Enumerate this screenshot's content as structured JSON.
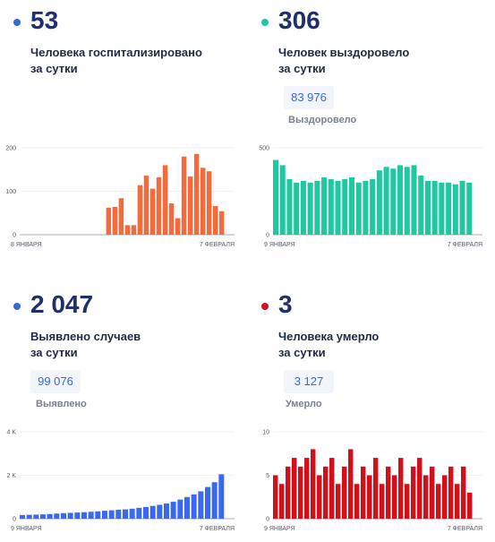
{
  "panels": [
    {
      "value": "53",
      "desc_line1": "Человека госпитализировано",
      "desc_line2": "за сутки",
      "dot_color": "#3a68d8",
      "total": "",
      "total_label": ""
    },
    {
      "value": "306",
      "desc_line1": "Человек выздоровело",
      "desc_line2": "за сутки",
      "dot_color": "#1fc8a0",
      "total": "83 976",
      "total_label": "Выздоровело"
    },
    {
      "value": "2 047",
      "desc_line1": "Выявлено случаев",
      "desc_line2": "за сутки",
      "dot_color": "#3a68d8",
      "total": "99 076",
      "total_label": "Выявлено"
    },
    {
      "value": "3",
      "desc_line1": "Человека умерло",
      "desc_line2": "за сутки",
      "dot_color": "#d0111b",
      "total": "3 127",
      "total_label": "Умерло"
    }
  ],
  "chart_data": [
    {
      "type": "bar",
      "name": "hospitalized",
      "color": "#f56a3a",
      "x_start_label": "8 ЯНВАРЯ",
      "x_end_label": "7 ФЕВРАЛЯ",
      "y_ticks": [
        "0",
        "100",
        "200"
      ],
      "ylim": [
        0,
        200
      ],
      "values": [
        null,
        null,
        null,
        null,
        null,
        null,
        null,
        null,
        null,
        null,
        null,
        null,
        null,
        null,
        null,
        null,
        null,
        null,
        null,
        null,
        null,
        null,
        null,
        null,
        null,
        null,
        null,
        null,
        null,
        null,
        null,
        null,
        null,
        null,
        null,
        null,
        null,
        null,
        null,
        null,
        null,
        null,
        null,
        null,
        null,
        null,
        null,
        null,
        null,
        null,
        null,
        null,
        null,
        null,
        null,
        null,
        null,
        null,
        null,
        null,
        null,
        null,
        null,
        null,
        null,
        null,
        null,
        null,
        null,
        null,
        null,
        null,
        null,
        null,
        null,
        null,
        null,
        null,
        null,
        null,
        null,
        null,
        null,
        null,
        null,
        null,
        null,
        null,
        null,
        null,
        null,
        null,
        null,
        null,
        null,
        null,
        null,
        null,
        null,
        null,
        null,
        null,
        null,
        null,
        null,
        null,
        null,
        null,
        null,
        null,
        null,
        null,
        null,
        null,
        null,
        null,
        null,
        null,
        null,
        null,
        null,
        null,
        null,
        null,
        null,
        null,
        null,
        null,
        null,
        null,
        null,
        null,
        null,
        null,
        null,
        null,
        null,
        null,
        null,
        null,
        null,
        null,
        null,
        null,
        null,
        null,
        null,
        null,
        null,
        null
      ],
      "bars": [
        62,
        64,
        84,
        22,
        22,
        114,
        136,
        106,
        132,
        160,
        72,
        38,
        180,
        134,
        186,
        154,
        146,
        66,
        54
      ]
    },
    {
      "type": "bar",
      "name": "recovered",
      "color": "#1fc8a0",
      "x_start_label": "9 ЯНВАРЯ",
      "x_end_label": "7 ФЕВРАЛЯ",
      "y_ticks": [
        "0",
        "500"
      ],
      "ylim": [
        0,
        500
      ],
      "bars": [
        430,
        400,
        320,
        300,
        310,
        300,
        310,
        330,
        320,
        310,
        320,
        330,
        300,
        310,
        320,
        370,
        390,
        380,
        400,
        390,
        400,
        340,
        310,
        310,
        300,
        300,
        290,
        310,
        300
      ]
    },
    {
      "type": "bar",
      "name": "cases",
      "color": "#3a68f0",
      "x_start_label": "9 ЯНВАРЯ",
      "x_end_label": "7 ФЕВРАЛЯ",
      "y_ticks": [
        "0",
        "2 K",
        "4 K"
      ],
      "ylim": [
        0,
        4000
      ],
      "bars": [
        170,
        180,
        190,
        200,
        215,
        235,
        255,
        270,
        285,
        300,
        320,
        340,
        365,
        385,
        410,
        430,
        460,
        500,
        540,
        590,
        640,
        700,
        780,
        880,
        1000,
        1120,
        1260,
        1460,
        1680,
        2047
      ]
    },
    {
      "type": "bar",
      "name": "deaths",
      "color": "#d0111b",
      "x_start_label": "9 ЯНВАРЯ",
      "x_end_label": "7 ФЕВРАЛЯ",
      "y_ticks": [
        "0",
        "5",
        "10"
      ],
      "ylim": [
        0,
        10
      ],
      "bars": [
        5,
        4,
        6,
        7,
        6,
        7,
        8,
        5,
        6,
        7,
        4,
        6,
        8,
        4,
        6,
        5,
        7,
        4,
        6,
        5,
        7,
        4,
        6,
        7,
        5,
        6,
        4,
        5,
        6,
        4,
        6,
        3
      ]
    }
  ]
}
